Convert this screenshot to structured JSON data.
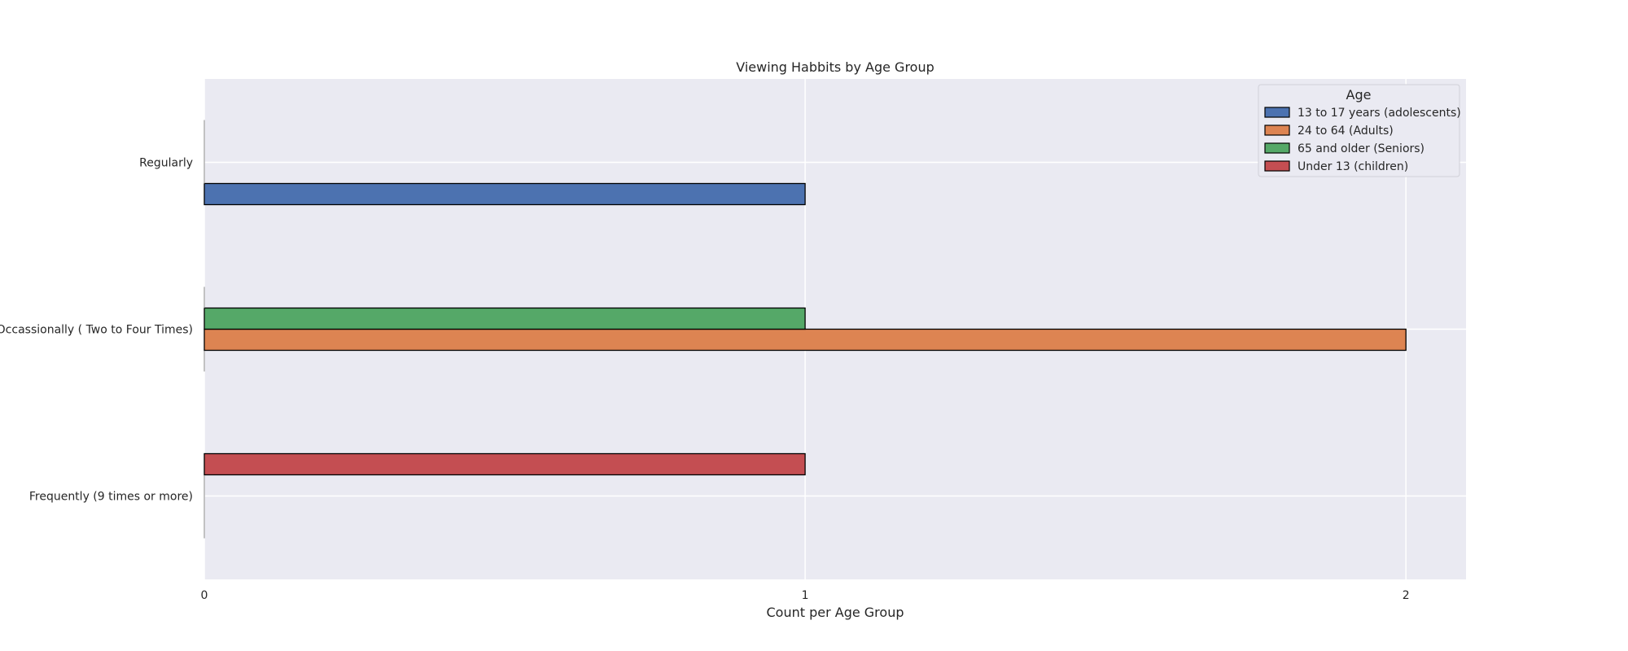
{
  "chart_data": {
    "type": "bar",
    "orientation": "horizontal",
    "title": "Viewing Habbits by Age Group",
    "xlabel": "Count per Age Group",
    "ylabel": "",
    "xlim": [
      0,
      2.1
    ],
    "xticks": [
      0,
      1,
      2
    ],
    "grid": true,
    "categories": [
      "Regularly",
      "Occassionally ( Two to Four Times)",
      "Frequently (9 times or more)"
    ],
    "series": [
      {
        "name": "13 to 17 years (adolescents)",
        "color": "#4c72b0",
        "values": [
          1,
          0,
          0
        ]
      },
      {
        "name": "24 to 64 (Adults)",
        "color": "#dd8452",
        "values": [
          0,
          2,
          0
        ]
      },
      {
        "name": "65 and older (Seniors)",
        "color": "#55a868",
        "values": [
          0,
          1,
          0
        ]
      },
      {
        "name": "Under 13 (children)",
        "color": "#c44e52",
        "values": [
          0,
          0,
          1
        ]
      }
    ],
    "legend": {
      "title": "Age",
      "position": "top-right"
    }
  }
}
